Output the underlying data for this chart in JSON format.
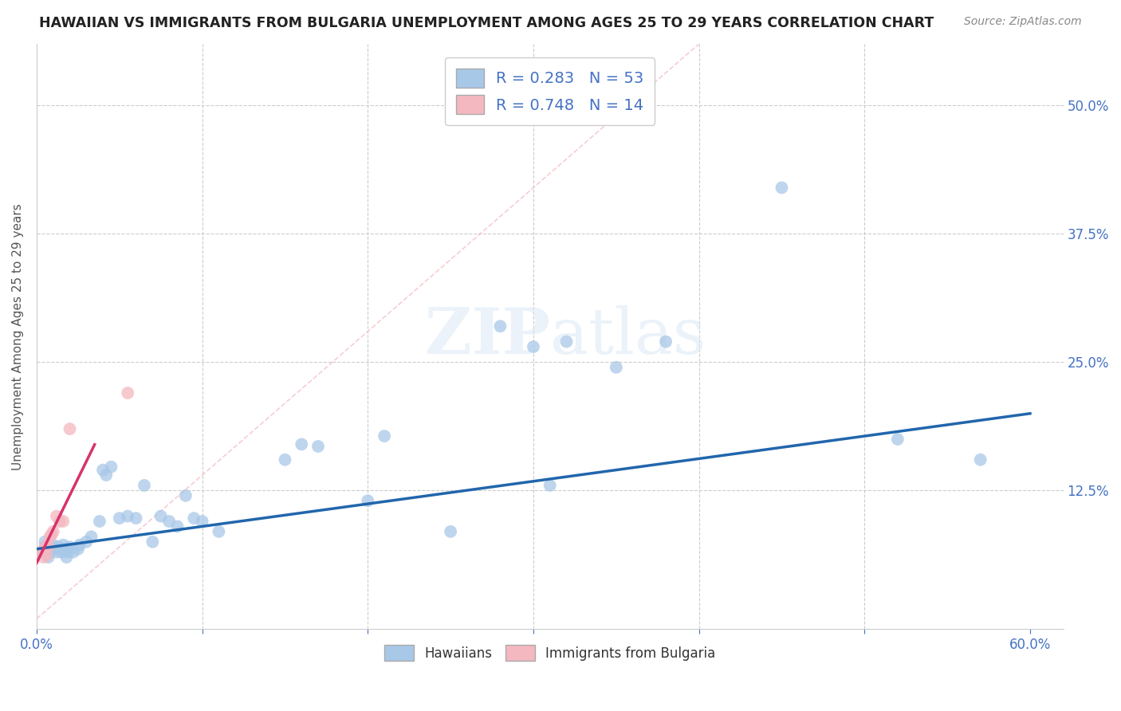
{
  "title": "HAWAIIAN VS IMMIGRANTS FROM BULGARIA UNEMPLOYMENT AMONG AGES 25 TO 29 YEARS CORRELATION CHART",
  "source": "Source: ZipAtlas.com",
  "ylabel": "Unemployment Among Ages 25 to 29 years",
  "xlim": [
    0.0,
    0.62
  ],
  "ylim": [
    -0.01,
    0.56
  ],
  "yticks": [
    0.0,
    0.125,
    0.25,
    0.375,
    0.5
  ],
  "ytick_labels": [
    "",
    "12.5%",
    "25.0%",
    "37.5%",
    "50.0%"
  ],
  "xticks": [
    0.0,
    0.1,
    0.2,
    0.3,
    0.4,
    0.5,
    0.6
  ],
  "xtick_labels": [
    "0.0%",
    "",
    "",
    "",
    "",
    "",
    "60.0%"
  ],
  "r_hawaiians": "0.283",
  "n_hawaiians": "53",
  "r_bulgaria": "0.748",
  "n_bulgaria": "14",
  "blue_color": "#a8c8e8",
  "pink_color": "#f4b8c0",
  "trend_blue": "#2166ac",
  "trend_pink": "#d6336c",
  "diag_color": "#f4b8c0",
  "axis_color": "#4472c4",
  "grid_color": "#cccccc",
  "hawaiians_x": [
    0.003,
    0.005,
    0.005,
    0.007,
    0.008,
    0.008,
    0.01,
    0.01,
    0.012,
    0.013,
    0.015,
    0.015,
    0.016,
    0.018,
    0.018,
    0.019,
    0.02,
    0.022,
    0.025,
    0.026,
    0.03,
    0.033,
    0.038,
    0.04,
    0.042,
    0.045,
    0.05,
    0.055,
    0.06,
    0.065,
    0.07,
    0.075,
    0.08,
    0.085,
    0.09,
    0.095,
    0.1,
    0.11,
    0.15,
    0.16,
    0.17,
    0.2,
    0.21,
    0.25,
    0.28,
    0.3,
    0.31,
    0.32,
    0.35,
    0.38,
    0.45,
    0.52,
    0.57
  ],
  "hawaiians_y": [
    0.065,
    0.07,
    0.075,
    0.06,
    0.065,
    0.07,
    0.068,
    0.072,
    0.065,
    0.07,
    0.065,
    0.068,
    0.072,
    0.06,
    0.068,
    0.065,
    0.07,
    0.065,
    0.068,
    0.072,
    0.075,
    0.08,
    0.095,
    0.145,
    0.14,
    0.148,
    0.098,
    0.1,
    0.098,
    0.13,
    0.075,
    0.1,
    0.095,
    0.09,
    0.12,
    0.098,
    0.095,
    0.085,
    0.155,
    0.17,
    0.168,
    0.115,
    0.178,
    0.085,
    0.285,
    0.265,
    0.13,
    0.27,
    0.245,
    0.27,
    0.42,
    0.175,
    0.155
  ],
  "bulgaria_x": [
    0.003,
    0.004,
    0.005,
    0.006,
    0.006,
    0.007,
    0.008,
    0.009,
    0.01,
    0.012,
    0.014,
    0.016,
    0.02,
    0.055
  ],
  "bulgaria_y": [
    0.065,
    0.06,
    0.068,
    0.062,
    0.072,
    0.07,
    0.08,
    0.082,
    0.085,
    0.1,
    0.095,
    0.095,
    0.185,
    0.22
  ]
}
